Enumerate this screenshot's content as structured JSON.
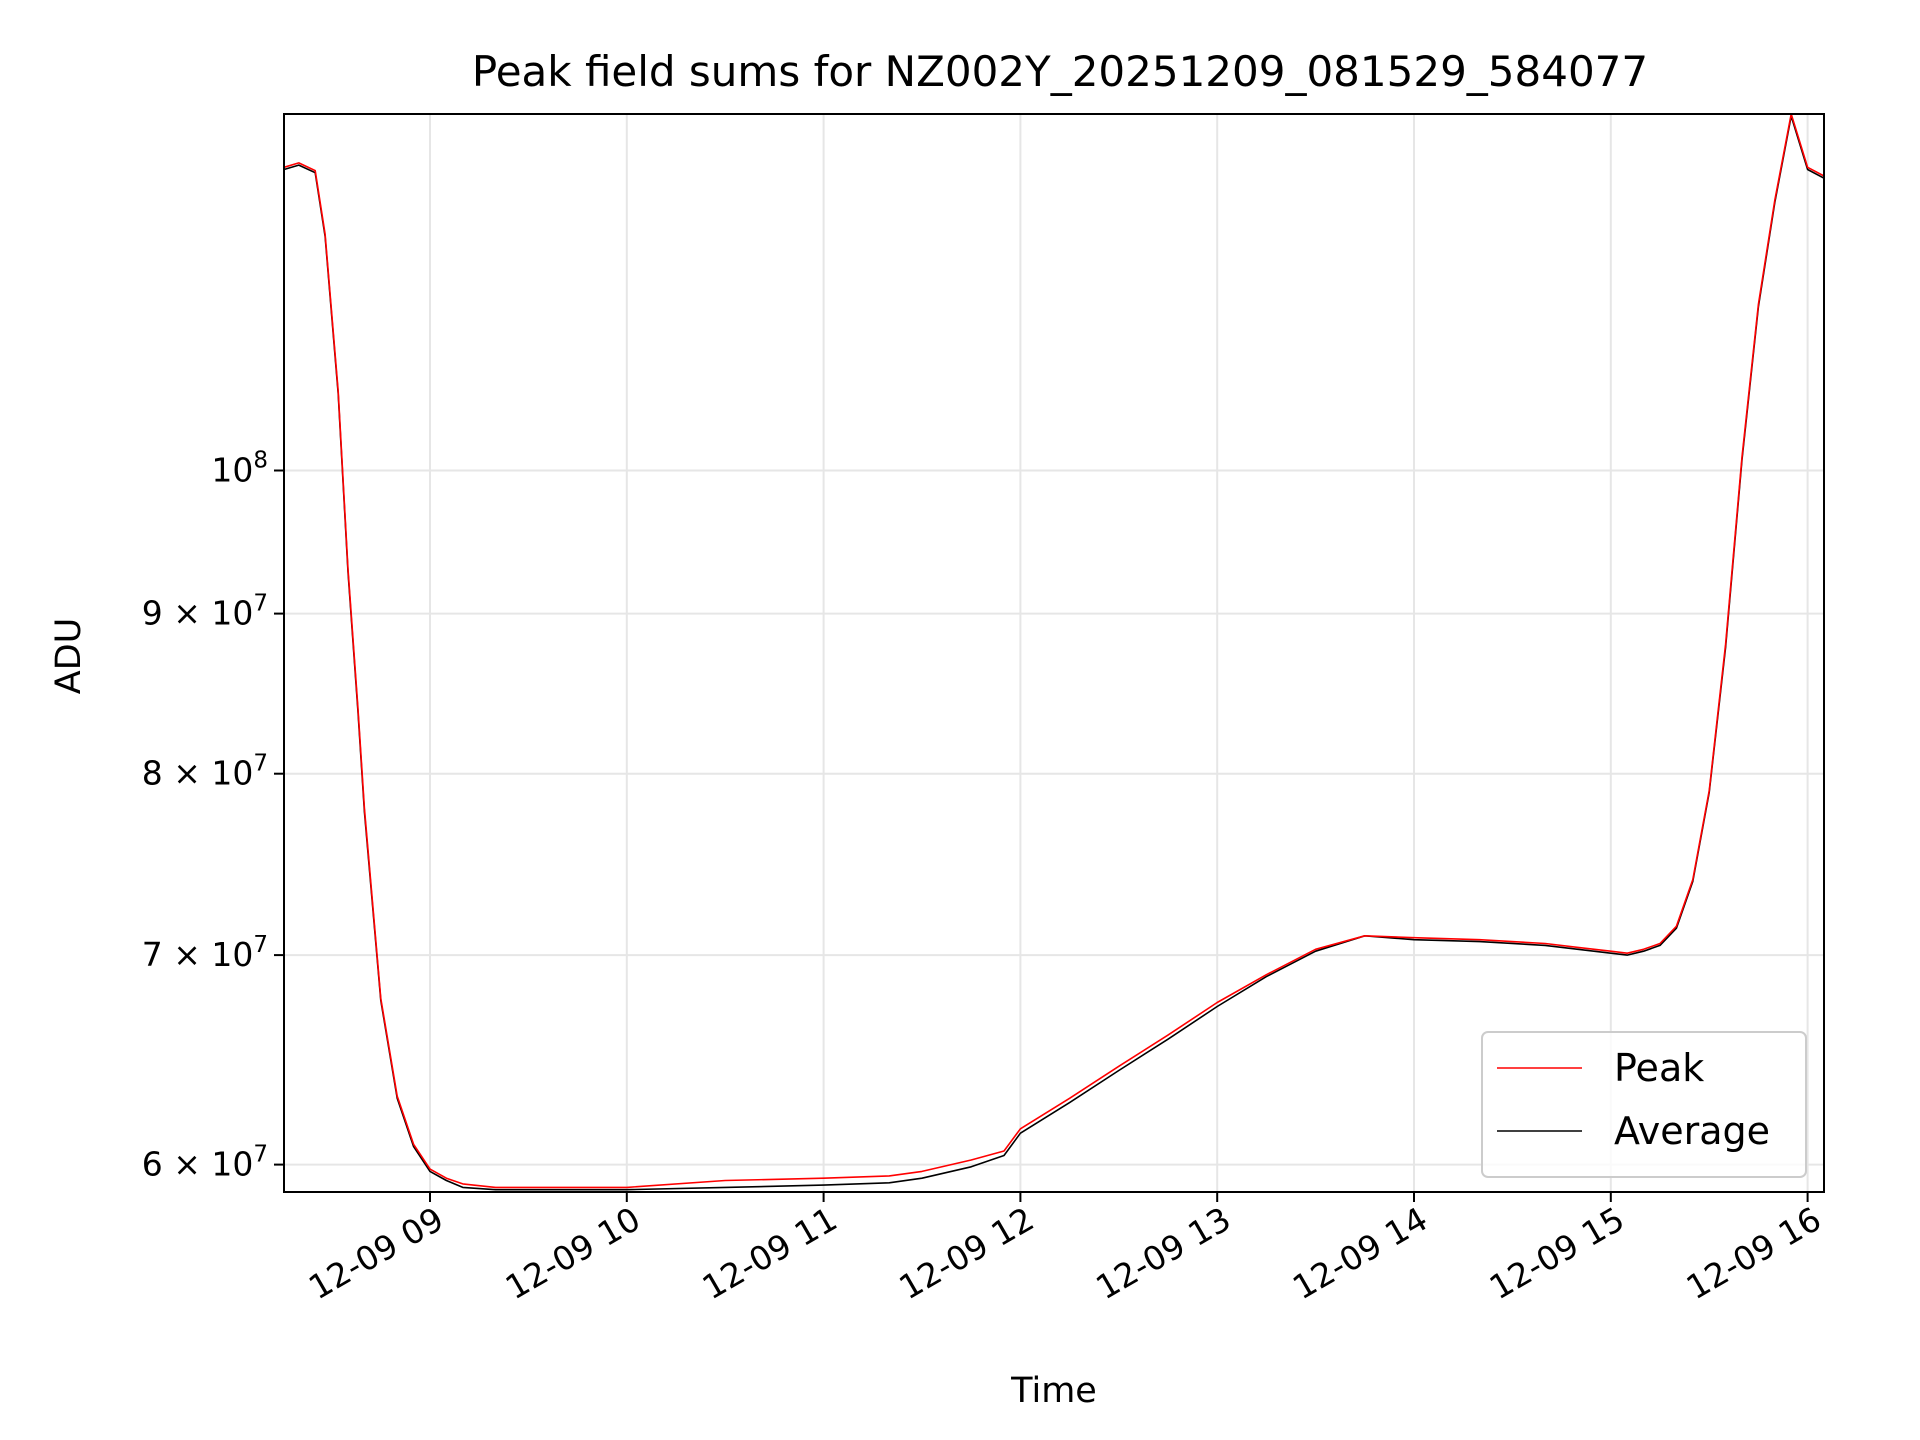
{
  "chart_data": {
    "type": "line",
    "title": "Peak field sums for NZ002Y_20251209_081529_584077",
    "xlabel": "Time",
    "ylabel": "ADU",
    "yscale": "log",
    "grid": true,
    "legend_position": "lower right",
    "x_ticks": [
      {
        "t": "2025-12-09T09:00",
        "label": "12-09 09"
      },
      {
        "t": "2025-12-09T10:00",
        "label": "12-09 10"
      },
      {
        "t": "2025-12-09T11:00",
        "label": "12-09 11"
      },
      {
        "t": "2025-12-09T12:00",
        "label": "12-09 12"
      },
      {
        "t": "2025-12-09T13:00",
        "label": "12-09 13"
      },
      {
        "t": "2025-12-09T14:00",
        "label": "12-09 14"
      },
      {
        "t": "2025-12-09T15:00",
        "label": "12-09 15"
      },
      {
        "t": "2025-12-09T16:00",
        "label": "12-09 16"
      }
    ],
    "y_ticks": [
      {
        "value": 60000000,
        "mant": "6",
        "exp": "7"
      },
      {
        "value": 70000000,
        "mant": "7",
        "exp": "7"
      },
      {
        "value": 80000000,
        "mant": "8",
        "exp": "7"
      },
      {
        "value": 90000000,
        "mant": "9",
        "exp": "7"
      },
      {
        "value": 100000000,
        "mant": "",
        "exp": "8"
      }
    ],
    "xlim": [
      "2025-12-09T08:15:29",
      "2025-12-09T16:05:00"
    ],
    "ylim": [
      58800000,
      130000000
    ],
    "series": [
      {
        "name": "Peak",
        "color": "#ff0000",
        "x": [
          "2025-12-09T08:15:29",
          "2025-12-09T08:20",
          "2025-12-09T08:25",
          "2025-12-09T08:28",
          "2025-12-09T08:32",
          "2025-12-09T08:35",
          "2025-12-09T08:38",
          "2025-12-09T08:40",
          "2025-12-09T08:45",
          "2025-12-09T08:50",
          "2025-12-09T08:55",
          "2025-12-09T09:00",
          "2025-12-09T09:05",
          "2025-12-09T09:10",
          "2025-12-09T09:20",
          "2025-12-09T09:40",
          "2025-12-09T10:00",
          "2025-12-09T10:30",
          "2025-12-09T11:00",
          "2025-12-09T11:20",
          "2025-12-09T11:30",
          "2025-12-09T11:45",
          "2025-12-09T11:55",
          "2025-12-09T12:00",
          "2025-12-09T12:15",
          "2025-12-09T12:30",
          "2025-12-09T12:45",
          "2025-12-09T13:00",
          "2025-12-09T13:15",
          "2025-12-09T13:30",
          "2025-12-09T13:45",
          "2025-12-09T14:00",
          "2025-12-09T14:20",
          "2025-12-09T14:40",
          "2025-12-09T14:50",
          "2025-12-09T15:00",
          "2025-12-09T15:05",
          "2025-12-09T15:10",
          "2025-12-09T15:15",
          "2025-12-09T15:20",
          "2025-12-09T15:25",
          "2025-12-09T15:30",
          "2025-12-09T15:35",
          "2025-12-09T15:40",
          "2025-12-09T15:45",
          "2025-12-09T15:50",
          "2025-12-09T15:55",
          "2025-12-09T16:00",
          "2025-12-09T16:05"
        ],
        "y": [
          125000000,
          125400000,
          124700000,
          119000000,
          106000000,
          93000000,
          84000000,
          78000000,
          67800000,
          63100000,
          60900000,
          59800000,
          59400000,
          59150000,
          59000000,
          59000000,
          59000000,
          59300000,
          59400000,
          59500000,
          59700000,
          60200000,
          60600000,
          61600000,
          63000000,
          64500000,
          66000000,
          67600000,
          69000000,
          70300000,
          71000000,
          70900000,
          70800000,
          70600000,
          70400000,
          70200000,
          70100000,
          70300000,
          70600000,
          71500000,
          74000000,
          79000000,
          88000000,
          101000000,
          113000000,
          122000000,
          130000000,
          125000000,
          124200000
        ]
      },
      {
        "name": "Average",
        "color": "#000000",
        "x": [
          "2025-12-09T08:15:29",
          "2025-12-09T08:20",
          "2025-12-09T08:25",
          "2025-12-09T08:28",
          "2025-12-09T08:32",
          "2025-12-09T08:35",
          "2025-12-09T08:38",
          "2025-12-09T08:40",
          "2025-12-09T08:45",
          "2025-12-09T08:50",
          "2025-12-09T08:55",
          "2025-12-09T09:00",
          "2025-12-09T09:05",
          "2025-12-09T09:10",
          "2025-12-09T09:20",
          "2025-12-09T09:40",
          "2025-12-09T10:00",
          "2025-12-09T10:30",
          "2025-12-09T11:00",
          "2025-12-09T11:20",
          "2025-12-09T11:30",
          "2025-12-09T11:45",
          "2025-12-09T11:55",
          "2025-12-09T12:00",
          "2025-12-09T12:15",
          "2025-12-09T12:30",
          "2025-12-09T12:45",
          "2025-12-09T13:00",
          "2025-12-09T13:15",
          "2025-12-09T13:30",
          "2025-12-09T13:45",
          "2025-12-09T14:00",
          "2025-12-09T14:20",
          "2025-12-09T14:40",
          "2025-12-09T14:50",
          "2025-12-09T15:00",
          "2025-12-09T15:05",
          "2025-12-09T15:10",
          "2025-12-09T15:15",
          "2025-12-09T15:20",
          "2025-12-09T15:25",
          "2025-12-09T15:30",
          "2025-12-09T15:35",
          "2025-12-09T15:40",
          "2025-12-09T15:45",
          "2025-12-09T15:50",
          "2025-12-09T15:55",
          "2025-12-09T16:00",
          "2025-12-09T16:05"
        ],
        "y": [
          124800000,
          125200000,
          124500000,
          118800000,
          105800000,
          92800000,
          83800000,
          77800000,
          67700000,
          63000000,
          60800000,
          59700000,
          59300000,
          59000000,
          58900000,
          58900000,
          58900000,
          59000000,
          59100000,
          59200000,
          59400000,
          59900000,
          60400000,
          61400000,
          62800000,
          64300000,
          65800000,
          67400000,
          68900000,
          70200000,
          71000000,
          70800000,
          70700000,
          70500000,
          70300000,
          70100000,
          70000000,
          70200000,
          70500000,
          71400000,
          73900000,
          78900000,
          87800000,
          100800000,
          112800000,
          121800000,
          129800000,
          124800000,
          124000000
        ]
      }
    ]
  }
}
